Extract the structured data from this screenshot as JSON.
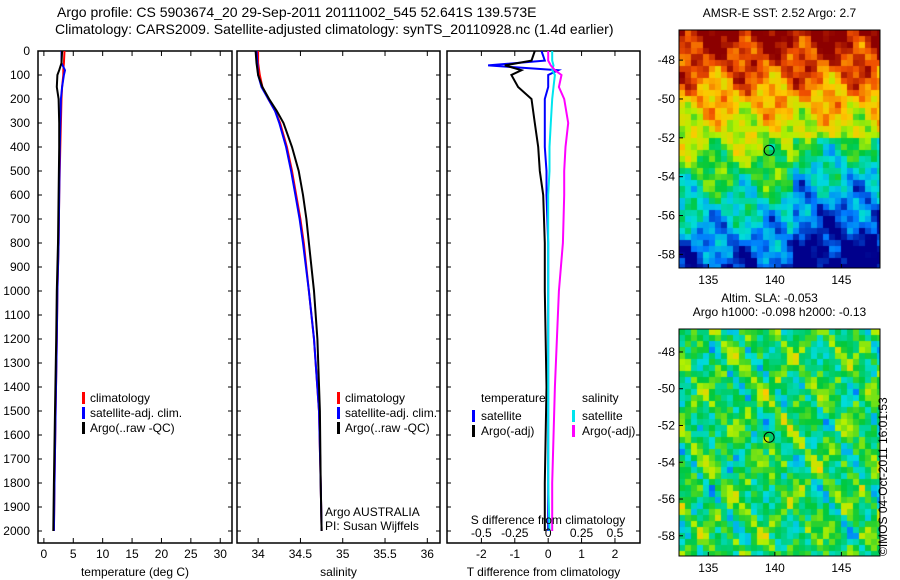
{
  "title_line1": "Argo profile: CS 5903674_20 29-Sep-2011 20111002_545 52.641S 139.573E",
  "title_line2": "Climatology: CARS2009. Satellite-adjusted climatology: synTS_20110928.nc (1.4d earlier)",
  "credit": "©IMOS 04-Oct-2011 16:01:53",
  "colors": {
    "climatology": "#ff0000",
    "satellite": "#0000ff",
    "argo": "#000000",
    "sal_satellite": "#00e5ee",
    "sal_argo": "#ff00ff"
  },
  "chart_data": [
    {
      "type": "line",
      "name": "temperature-profile",
      "xlabel": "temperature (deg C)",
      "xlim": [
        -1,
        32
      ],
      "ylim": [
        2050,
        0
      ],
      "xticks": [
        "0",
        "5",
        "10",
        "15",
        "20",
        "25",
        "30"
      ],
      "xtick_values": [
        0,
        5,
        10,
        15,
        20,
        25,
        30
      ],
      "yticks": [
        "0",
        "100",
        "200",
        "300",
        "400",
        "500",
        "600",
        "700",
        "800",
        "900",
        "1000",
        "1100",
        "1200",
        "1300",
        "1400",
        "1500",
        "1600",
        "1700",
        "1800",
        "1900",
        "2000"
      ],
      "depth": [
        0,
        50,
        80,
        100,
        150,
        200,
        300,
        400,
        600,
        800,
        1000,
        1200,
        1500,
        1800,
        2000
      ],
      "series": [
        {
          "name": "climatology",
          "color": "#ff0000",
          "values": [
            3.5,
            3.4,
            3.3,
            3.3,
            3.1,
            3.0,
            2.9,
            2.8,
            2.6,
            2.5,
            2.3,
            2.2,
            2.0,
            1.8,
            1.7
          ]
        },
        {
          "name": "satellite-adj. clim.",
          "color": "#0000ff",
          "values": [
            3.0,
            3.0,
            3.6,
            3.4,
            3.1,
            2.9,
            2.8,
            2.7,
            2.6,
            2.5,
            2.3,
            2.2,
            2.0,
            1.8,
            1.7
          ]
        },
        {
          "name": "Argo(..raw -QC)",
          "color": "#000000",
          "values": [
            3.1,
            3.0,
            2.6,
            2.3,
            2.2,
            2.5,
            2.6,
            2.6,
            2.5,
            2.4,
            2.2,
            2.1,
            1.9,
            1.7,
            1.6
          ]
        }
      ],
      "legend": [
        "climatology",
        "satellite-adj. clim.",
        "Argo(..raw -QC)"
      ]
    },
    {
      "type": "line",
      "name": "salinity-profile",
      "xlabel": "salinity",
      "xlim": [
        33.75,
        36.15
      ],
      "ylim": [
        2050,
        0
      ],
      "xticks": [
        "34",
        "34.5",
        "35",
        "35.5",
        "36"
      ],
      "xtick_values": [
        34,
        34.5,
        35,
        35.5,
        36
      ],
      "depth": [
        0,
        50,
        100,
        150,
        200,
        250,
        300,
        400,
        500,
        600,
        700,
        800,
        1000,
        1200,
        1500,
        1800,
        2000
      ],
      "series": [
        {
          "name": "climatology",
          "color": "#ff0000",
          "values": [
            34.0,
            34.0,
            34.02,
            34.05,
            34.12,
            34.2,
            34.26,
            34.34,
            34.4,
            34.45,
            34.5,
            34.54,
            34.6,
            34.66,
            34.72,
            34.74,
            34.75
          ]
        },
        {
          "name": "satellite-adj. clim.",
          "color": "#0000ff",
          "values": [
            33.98,
            33.99,
            34.0,
            34.04,
            34.12,
            34.2,
            34.25,
            34.33,
            34.39,
            34.44,
            34.49,
            34.53,
            34.6,
            34.66,
            34.72,
            34.74,
            34.75
          ]
        },
        {
          "name": "Argo(..raw -QC)",
          "color": "#000000",
          "values": [
            33.97,
            33.98,
            34.0,
            34.05,
            34.13,
            34.22,
            34.3,
            34.4,
            34.48,
            34.53,
            34.57,
            34.6,
            34.66,
            34.7,
            34.73,
            34.74,
            34.75
          ]
        }
      ],
      "legend": [
        "climatology",
        "satellite-adj. clim.",
        "Argo(..raw -QC)"
      ],
      "annotation": [
        "Argo AUSTRALIA",
        "PI: Susan Wijffels"
      ]
    },
    {
      "type": "line",
      "name": "difference-profile",
      "xlabel": "T difference from climatology",
      "xlim": [
        -3.03,
        2.75
      ],
      "ylim": [
        2050,
        0
      ],
      "xticks": [
        "-2",
        "-1",
        "0",
        "1",
        "2"
      ],
      "xtick_values": [
        -2,
        -1,
        0,
        1,
        2
      ],
      "x2label": "S difference from climatology",
      "x2ticks": [
        "-0.5",
        "-0.25",
        "0",
        "0.25",
        "0.5"
      ],
      "x2tick_values": [
        -0.5,
        -0.25,
        0,
        0.25,
        0.5
      ],
      "depth": [
        0,
        40,
        60,
        80,
        100,
        150,
        200,
        300,
        400,
        500,
        600,
        800,
        1000,
        1400,
        1800,
        2000
      ],
      "series": [
        {
          "name": "temperature satellite",
          "color": "#0000ff",
          "axis": "T",
          "values": [
            -0.2,
            -0.1,
            -1.8,
            0.3,
            0.0,
            0.0,
            -0.1,
            -0.1,
            -0.1,
            -0.05,
            -0.05,
            0,
            0,
            0,
            0,
            0
          ]
        },
        {
          "name": "temperature Argo(-adj)",
          "color": "#000000",
          "axis": "T",
          "values": [
            -0.4,
            -0.5,
            -1.3,
            -0.8,
            -1.1,
            -0.9,
            -0.5,
            -0.4,
            -0.3,
            -0.25,
            -0.15,
            -0.1,
            -0.1,
            -0.05,
            -0.1,
            -0.1
          ]
        },
        {
          "name": "salinity satellite",
          "color": "#00e5ee",
          "axis": "S",
          "values": [
            0.03,
            0.03,
            0.04,
            0.03,
            0.05,
            0.04,
            0.03,
            0.02,
            0.01,
            0.01,
            0.0,
            0.0,
            0.0,
            0.0,
            0.0,
            0.01
          ]
        },
        {
          "name": "salinity Argo(-adj)",
          "color": "#ff00ff",
          "axis": "S",
          "values": [
            0,
            0.0,
            0.02,
            0.05,
            0.1,
            0.08,
            0.12,
            0.15,
            0.13,
            0.12,
            0.12,
            0.11,
            0.08,
            0.05,
            0.03,
            0.03
          ]
        }
      ],
      "legend_temperature": {
        "title": "temperature",
        "items": [
          "satellite",
          "Argo(-adj)"
        ]
      },
      "legend_salinity": {
        "title": "salinity",
        "items": [
          "satellite",
          "Argo(-adj)"
        ]
      }
    },
    {
      "type": "heatmap",
      "name": "sst-map",
      "title": "AMSR-E SST: 2.52 Argo: 2.7",
      "xlim": [
        132.8,
        147.9
      ],
      "ylim": [
        -58.7,
        -46.45
      ],
      "xticks": [
        "135",
        "140",
        "145"
      ],
      "xtick_values": [
        135,
        140,
        145
      ],
      "yticks": [
        "-48",
        "-50",
        "-52",
        "-54",
        "-56",
        "-58"
      ],
      "ytick_values": [
        -48,
        -50,
        -52,
        -54,
        -56,
        -58
      ],
      "marker": {
        "lon": 139.573,
        "lat": -52.641
      }
    },
    {
      "type": "heatmap",
      "name": "sla-map",
      "title": [
        "Altim. SLA: -0.053",
        "Argo h1000: -0.098 h2000: -0.13"
      ],
      "xlim": [
        132.8,
        147.9
      ],
      "ylim": [
        -59.1,
        -46.75
      ],
      "xticks": [
        "135",
        "140",
        "145"
      ],
      "xtick_values": [
        135,
        140,
        145
      ],
      "yticks": [
        "-48",
        "-50",
        "-52",
        "-54",
        "-56",
        "-58"
      ],
      "ytick_values": [
        -48,
        -50,
        -52,
        -54,
        -56,
        -58
      ],
      "marker": {
        "lon": 139.573,
        "lat": -52.641
      }
    }
  ]
}
